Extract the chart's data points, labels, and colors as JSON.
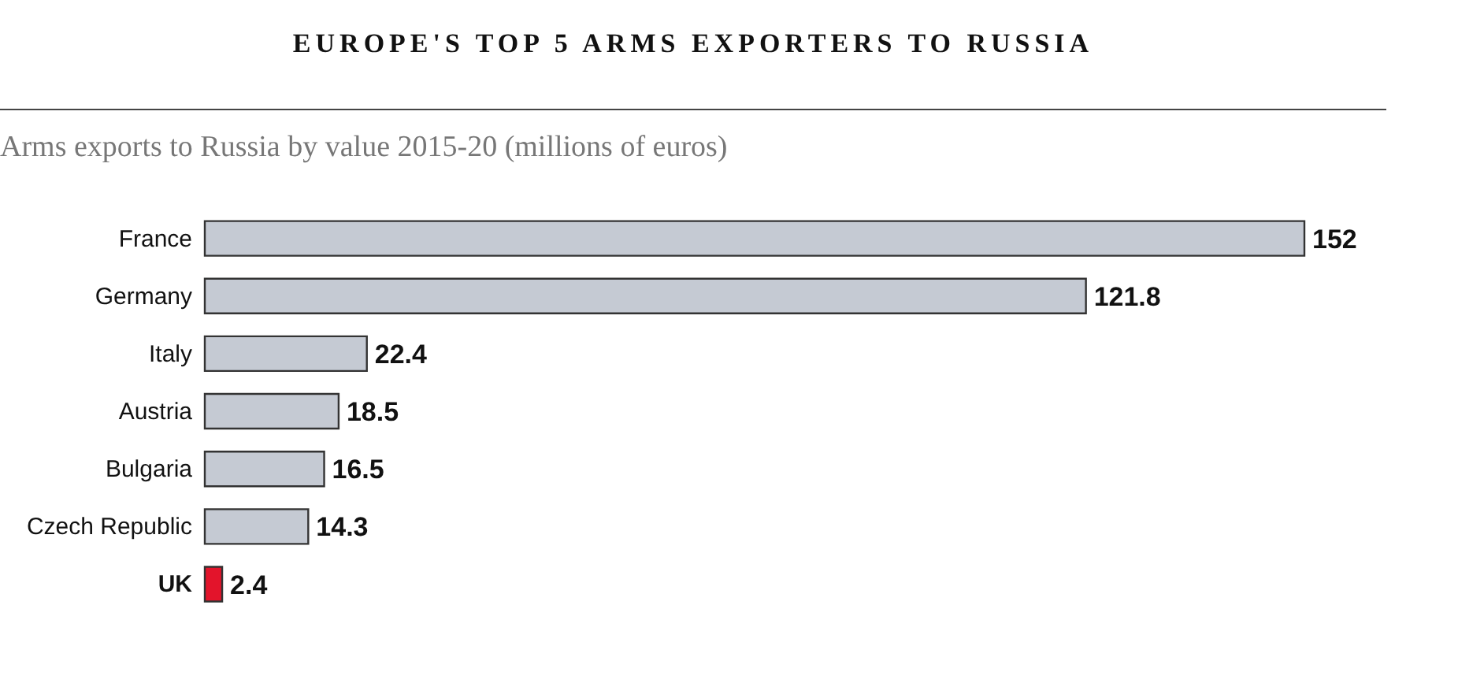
{
  "chart_data": {
    "type": "bar",
    "orientation": "horizontal",
    "title": "EUROPE'S TOP 5 ARMS EXPORTERS TO RUSSIA",
    "subtitle": "Arms exports to Russia by value 2015-20 (millions of euros)",
    "categories": [
      "France",
      "Germany",
      "Italy",
      "Austria",
      "Bulgaria",
      "Czech Republic",
      "UK"
    ],
    "values": [
      152,
      121.8,
      22.4,
      18.5,
      16.5,
      14.3,
      2.4
    ],
    "colors": [
      "#c5cad3",
      "#c5cad3",
      "#c5cad3",
      "#c5cad3",
      "#c5cad3",
      "#c5cad3",
      "#e3142b"
    ],
    "data_labels": true
  }
}
